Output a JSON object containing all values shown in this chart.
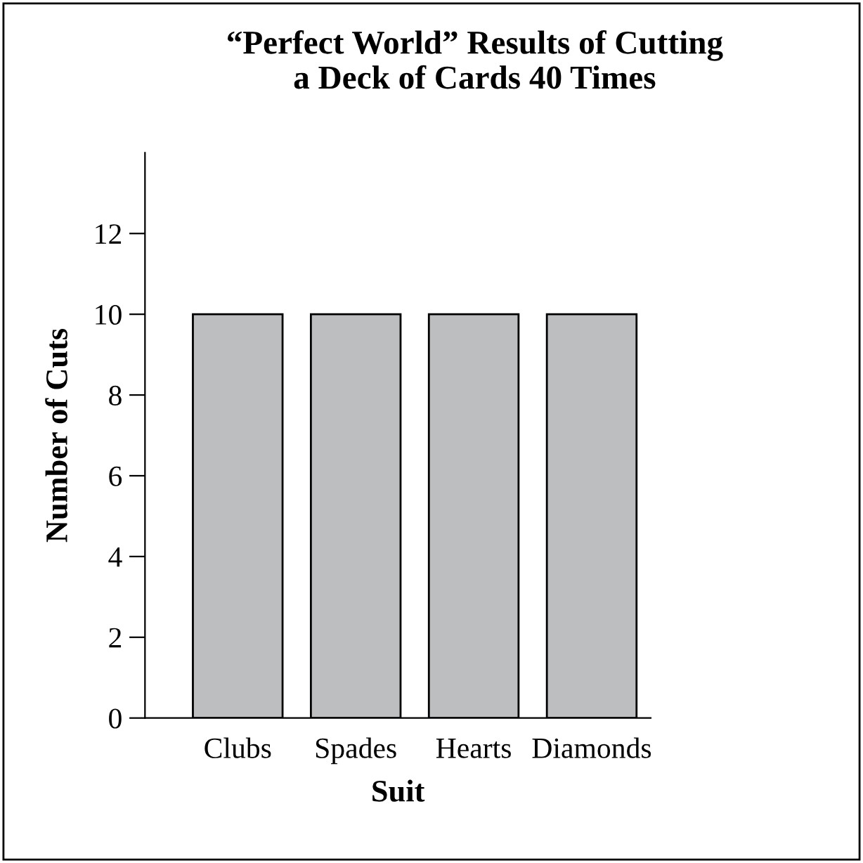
{
  "chart_data": {
    "type": "bar",
    "title": "“Perfect World” Results of Cutting\na Deck of Cards 40 Times",
    "xlabel": "Suit",
    "ylabel": "Number of Cuts",
    "categories": [
      "Clubs",
      "Spades",
      "Hearts",
      "Diamonds"
    ],
    "values": [
      10,
      10,
      10,
      10
    ],
    "color": "#bcbec0",
    "ylim": [
      0,
      14
    ],
    "yticks": [
      0,
      2,
      4,
      6,
      8,
      10,
      12
    ],
    "grid": false,
    "legend": false
  }
}
